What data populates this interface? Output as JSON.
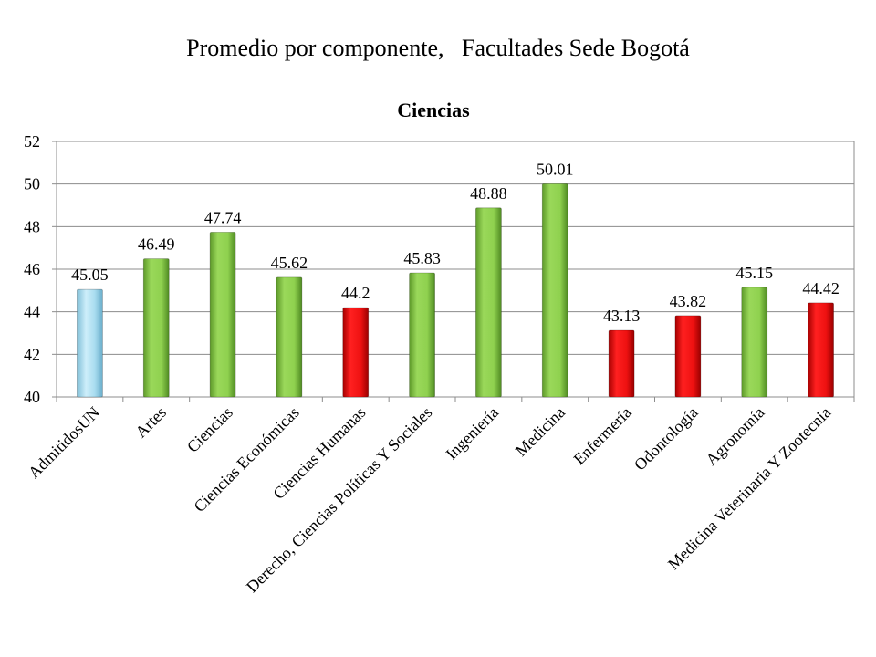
{
  "header": {
    "title_part1": "Promedio por componente,",
    "title_part2": "Facultades Sede Bogotá"
  },
  "chart_data": {
    "type": "bar",
    "title": "Ciencias",
    "categories": [
      "AdmitidosUN",
      "Artes",
      "Ciencias",
      "Ciencias Económicas",
      "Ciencias Humanas",
      "Derecho, Ciencias Políticas Y Sociales",
      "Ingeniería",
      "Medicina",
      "Enfermería",
      "Odontología",
      "Agronomía",
      "Medicina Veterinaria Y Zootecnia"
    ],
    "values": [
      45.05,
      46.49,
      47.74,
      45.62,
      44.2,
      45.83,
      48.88,
      50.01,
      43.13,
      43.82,
      45.15,
      44.42
    ],
    "value_labels": [
      "45.05",
      "46.49",
      "47.74",
      "45.62",
      "44.2",
      "45.83",
      "48.88",
      "50.01",
      "43.13",
      "43.82",
      "45.15",
      "44.42"
    ],
    "bar_colors": [
      "#a8dcef",
      "#8fd14f",
      "#8fd14f",
      "#8fd14f",
      "#ee1111",
      "#8fd14f",
      "#8fd14f",
      "#8fd14f",
      "#ee1111",
      "#ee1111",
      "#8fd14f",
      "#ee1111"
    ],
    "ylim": [
      40,
      52
    ],
    "yticks": [
      40,
      42,
      44,
      46,
      48,
      50,
      52
    ],
    "grid": true,
    "legend": "none"
  }
}
